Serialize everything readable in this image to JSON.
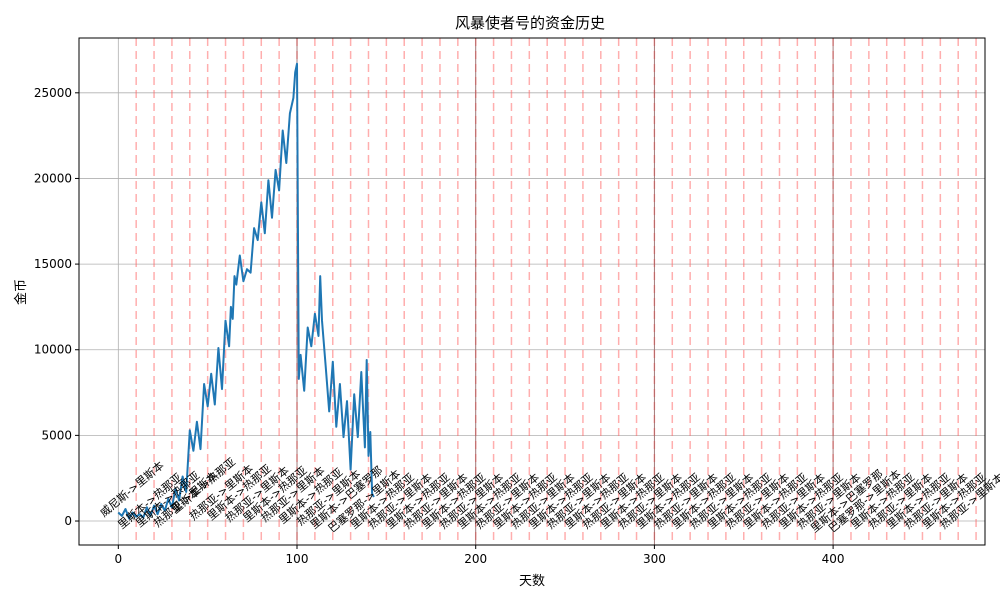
{
  "chart_data": {
    "type": "line",
    "title": "风暴使者号的资金历史",
    "xlabel": "天数",
    "ylabel": "金币",
    "xlim": [
      -22,
      485
    ],
    "ylim": [
      -1400,
      28200
    ],
    "xticks": [
      0,
      100,
      200,
      300,
      400
    ],
    "yticks": [
      0,
      5000,
      10000,
      15000,
      20000,
      25000
    ],
    "grid": true,
    "series": [
      {
        "color": "#1f77b4",
        "x": [
          0,
          2,
          4,
          6,
          8,
          10,
          12,
          14,
          16,
          18,
          20,
          22,
          24,
          26,
          28,
          30,
          32,
          34,
          36,
          38,
          40,
          42,
          44,
          46,
          48,
          50,
          52,
          54,
          56,
          58,
          60,
          62,
          63,
          64,
          65,
          66,
          68,
          70,
          72,
          74,
          76,
          78,
          80,
          82,
          84,
          86,
          88,
          90,
          92,
          94,
          96,
          98,
          99,
          100,
          101,
          102,
          104,
          106,
          108,
          110,
          112,
          113,
          114,
          116,
          118,
          120,
          122,
          124,
          126,
          128,
          130,
          132,
          134,
          136,
          138,
          139,
          140,
          141,
          142,
          143
        ],
        "y": [
          500,
          300,
          700,
          150,
          500,
          250,
          400,
          200,
          800,
          300,
          900,
          400,
          1000,
          600,
          1300,
          800,
          1900,
          1200,
          2600,
          1700,
          5300,
          4100,
          5800,
          4200,
          8000,
          6700,
          8600,
          6800,
          10100,
          7700,
          11700,
          10200,
          12500,
          11800,
          14300,
          13800,
          15500,
          14000,
          14700,
          14500,
          17100,
          16400,
          18600,
          16800,
          19900,
          17700,
          20500,
          19300,
          22800,
          20900,
          23800,
          24700,
          26200,
          26700,
          8300,
          9700,
          7600,
          11300,
          10200,
          12100,
          10800,
          14300,
          11700,
          9100,
          6400,
          9300,
          5500,
          8000,
          4900,
          7000,
          3000,
          7400,
          4900,
          8700,
          4300,
          9400,
          3800,
          5200,
          1600,
          1400
        ]
      }
    ],
    "voyage_lines_x": [
      10,
      20,
      30,
      40,
      50,
      60,
      70,
      80,
      90,
      100,
      110,
      120,
      130,
      140,
      150,
      160,
      170,
      180,
      190,
      200,
      210,
      220,
      230,
      240,
      250,
      260,
      270,
      280,
      290,
      300,
      310,
      320,
      330,
      340,
      350,
      360,
      370,
      380,
      390,
      400,
      410,
      420,
      430,
      440,
      450,
      460,
      470,
      480
    ],
    "dark_lines_x": [
      100,
      200,
      300,
      400
    ],
    "annotations": [
      {
        "x": 9,
        "y": 1700,
        "text": "威尼斯->里斯本"
      },
      {
        "x": 19,
        "y": 1000,
        "text": "里斯本->热那亚"
      },
      {
        "x": 29,
        "y": 1100,
        "text": "里斯本->热那亚"
      },
      {
        "x": 39,
        "y": 1100,
        "text": "热那亚->里斯本"
      },
      {
        "x": 49,
        "y": 1900,
        "text": "里斯本->热那亚"
      },
      {
        "x": 59,
        "y": 1500,
        "text": "热那亚->里斯本"
      },
      {
        "x": 69,
        "y": 1500,
        "text": "里斯本->热那亚"
      },
      {
        "x": 79,
        "y": 1400,
        "text": "热那亚->里斯本"
      },
      {
        "x": 89,
        "y": 1400,
        "text": "里斯本->热那亚"
      },
      {
        "x": 99,
        "y": 1400,
        "text": "热那亚->里斯本"
      },
      {
        "x": 109,
        "y": 1300,
        "text": "里斯本->热那亚"
      },
      {
        "x": 119,
        "y": 1200,
        "text": "热那亚->里斯本"
      },
      {
        "x": 129,
        "y": 1200,
        "text": "里斯本->巴塞罗那"
      },
      {
        "x": 139,
        "y": 1000,
        "text": "巴塞罗那->里斯本"
      },
      {
        "x": 149,
        "y": 1000,
        "text": "里斯本->热那亚"
      },
      {
        "x": 159,
        "y": 1000,
        "text": "热那亚->里斯本"
      },
      {
        "x": 169,
        "y": 1000,
        "text": "里斯本->热那亚"
      },
      {
        "x": 179,
        "y": 1000,
        "text": "热那亚->里斯本"
      },
      {
        "x": 189,
        "y": 1000,
        "text": "里斯本->热那亚"
      },
      {
        "x": 199,
        "y": 1000,
        "text": "热那亚->里斯本"
      },
      {
        "x": 209,
        "y": 1000,
        "text": "里斯本->热那亚"
      },
      {
        "x": 219,
        "y": 1000,
        "text": "热那亚->里斯本"
      },
      {
        "x": 229,
        "y": 1000,
        "text": "里斯本->热那亚"
      },
      {
        "x": 239,
        "y": 1000,
        "text": "热那亚->里斯本"
      },
      {
        "x": 249,
        "y": 1000,
        "text": "里斯本->热那亚"
      },
      {
        "x": 259,
        "y": 1000,
        "text": "热那亚->里斯本"
      },
      {
        "x": 269,
        "y": 1000,
        "text": "里斯本->热那亚"
      },
      {
        "x": 279,
        "y": 1000,
        "text": "热那亚->里斯本"
      },
      {
        "x": 289,
        "y": 1000,
        "text": "里斯本->热那亚"
      },
      {
        "x": 299,
        "y": 1000,
        "text": "热那亚->里斯本"
      },
      {
        "x": 309,
        "y": 1000,
        "text": "里斯本->热那亚"
      },
      {
        "x": 319,
        "y": 1000,
        "text": "热那亚->里斯本"
      },
      {
        "x": 329,
        "y": 1000,
        "text": "里斯本->热那亚"
      },
      {
        "x": 339,
        "y": 1000,
        "text": "热那亚->里斯本"
      },
      {
        "x": 349,
        "y": 1000,
        "text": "里斯本->热那亚"
      },
      {
        "x": 359,
        "y": 1000,
        "text": "热那亚->里斯本"
      },
      {
        "x": 369,
        "y": 1000,
        "text": "里斯本->热那亚"
      },
      {
        "x": 379,
        "y": 1000,
        "text": "热那亚->里斯本"
      },
      {
        "x": 389,
        "y": 1000,
        "text": "里斯本->热那亚"
      },
      {
        "x": 399,
        "y": 1000,
        "text": "热那亚->里斯本"
      },
      {
        "x": 409,
        "y": 1000,
        "text": "里斯本->巴塞罗那"
      },
      {
        "x": 419,
        "y": 1000,
        "text": "巴塞罗那->里斯本"
      },
      {
        "x": 429,
        "y": 1000,
        "text": "里斯本->热那亚"
      },
      {
        "x": 439,
        "y": 1000,
        "text": "热那亚->里斯本"
      },
      {
        "x": 449,
        "y": 1000,
        "text": "里斯本->热那亚"
      },
      {
        "x": 459,
        "y": 1000,
        "text": "热那亚->里斯本"
      },
      {
        "x": 469,
        "y": 1000,
        "text": "里斯本->热那亚"
      },
      {
        "x": 479,
        "y": 1000,
        "text": "热那亚->里斯本"
      }
    ]
  }
}
